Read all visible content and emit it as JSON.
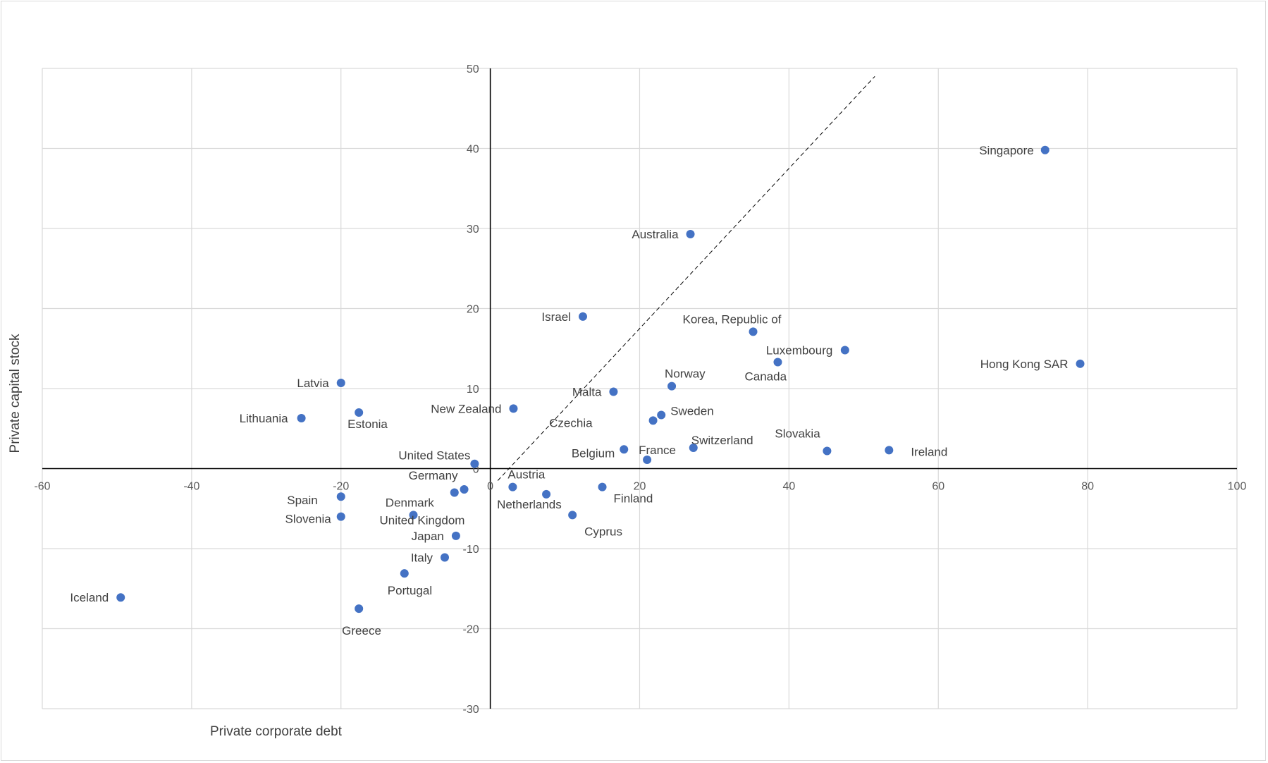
{
  "chart_data": {
    "type": "scatter",
    "title": "",
    "xlabel": "Private corporate debt",
    "ylabel": "Private capital stock",
    "xlim": [
      -60,
      100
    ],
    "ylim": [
      -30,
      50
    ],
    "xticks": [
      -60,
      -40,
      -20,
      0,
      20,
      40,
      60,
      80,
      100
    ],
    "yticks": [
      -30,
      -20,
      -10,
      0,
      10,
      20,
      30,
      40,
      50
    ],
    "xtick_labels": [
      "-60",
      "-40",
      "-20",
      "0",
      "20",
      "40",
      "60",
      "80",
      "100"
    ],
    "ytick_labels": [
      "-30",
      "-20",
      "-10",
      "0",
      "10",
      "20",
      "30",
      "40",
      "50"
    ],
    "grid": true,
    "marker_color": "#4472c4",
    "reference_line": {
      "style": "dashed",
      "from": [
        1,
        -1.5
      ],
      "to": [
        51.5,
        49
      ]
    },
    "points": [
      {
        "label": "Singapore",
        "x": 74.3,
        "y": 39.8
      },
      {
        "label": "Australia",
        "x": 26.8,
        "y": 29.3
      },
      {
        "label": "Israel",
        "x": 12.4,
        "y": 19.0
      },
      {
        "label": "Korea, Republic of",
        "x": 35.2,
        "y": 17.1
      },
      {
        "label": "Luxembourg",
        "x": 47.5,
        "y": 14.8
      },
      {
        "label": "Canada",
        "x": 38.5,
        "y": 13.3
      },
      {
        "label": "Hong Kong SAR",
        "x": 79.0,
        "y": 13.1
      },
      {
        "label": "Norway",
        "x": 24.3,
        "y": 10.3
      },
      {
        "label": "Malta",
        "x": 16.5,
        "y": 9.6
      },
      {
        "label": "Latvia",
        "x": -20.0,
        "y": 10.7
      },
      {
        "label": "New Zealand",
        "x": 3.1,
        "y": 7.5
      },
      {
        "label": "Estonia",
        "x": -17.6,
        "y": 7.0
      },
      {
        "label": "Lithuania",
        "x": -25.3,
        "y": 6.3
      },
      {
        "label": "Sweden",
        "x": 22.9,
        "y": 6.7
      },
      {
        "label": "Czechia",
        "x": 21.8,
        "y": 6.0
      },
      {
        "label": "Switzerland",
        "x": 27.2,
        "y": 2.6
      },
      {
        "label": "Belgium",
        "x": 17.9,
        "y": 2.4
      },
      {
        "label": "France",
        "x": 21.0,
        "y": 1.1
      },
      {
        "label": "Slovakia",
        "x": 45.1,
        "y": 2.2
      },
      {
        "label": "Ireland",
        "x": 53.4,
        "y": 2.3
      },
      {
        "label": "United States",
        "x": -2.1,
        "y": 0.6
      },
      {
        "label": "Austria",
        "x": 3.0,
        "y": -2.3
      },
      {
        "label": "Germany",
        "x": -3.5,
        "y": -2.6
      },
      {
        "label": "Denmark",
        "x": -4.8,
        "y": -3.0
      },
      {
        "label": "Netherlands",
        "x": 7.5,
        "y": -3.2
      },
      {
        "label": "Finland",
        "x": 15.0,
        "y": -2.3
      },
      {
        "label": "Spain",
        "x": -20.0,
        "y": -3.5
      },
      {
        "label": "Slovenia",
        "x": -20.0,
        "y": -6.0
      },
      {
        "label": "United Kingdom",
        "x": -10.3,
        "y": -5.8
      },
      {
        "label": "Cyprus",
        "x": 11.0,
        "y": -5.8
      },
      {
        "label": "Japan",
        "x": -4.6,
        "y": -8.4
      },
      {
        "label": "Italy",
        "x": -6.1,
        "y": -11.1
      },
      {
        "label": "Portugal",
        "x": -11.5,
        "y": -13.1
      },
      {
        "label": "Greece",
        "x": -17.6,
        "y": -17.5
      },
      {
        "label": "Iceland",
        "x": -49.5,
        "y": -16.1
      }
    ]
  }
}
